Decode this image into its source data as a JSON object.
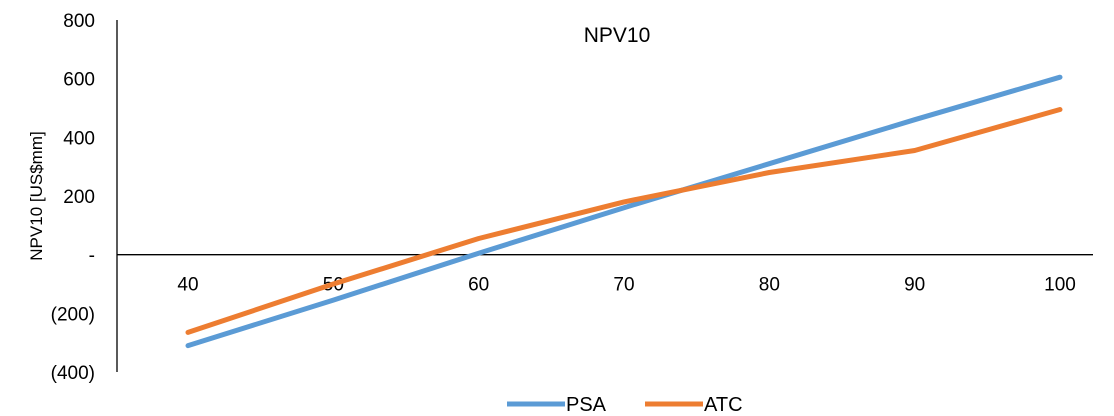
{
  "chart_data": {
    "type": "line",
    "title": "NPV10",
    "xlabel": "",
    "ylabel": "NPV10 [US$mm]",
    "x": [
      40,
      50,
      60,
      70,
      80,
      90,
      100
    ],
    "x_tick_labels": [
      "40",
      "50",
      "60",
      "70",
      "80",
      "90",
      "100"
    ],
    "ylim": [
      -400,
      800
    ],
    "y_ticks": [
      800,
      600,
      400,
      200,
      0,
      -200,
      -400
    ],
    "y_tick_labels": [
      "800",
      "600",
      "400",
      "200",
      "-",
      "(200)",
      "(400)"
    ],
    "grid": false,
    "legend_position": "bottom",
    "series": [
      {
        "name": "PSA",
        "color": "#5B9BD5",
        "values": [
          -310,
          -155,
          5,
          160,
          310,
          460,
          605
        ]
      },
      {
        "name": "ATC",
        "color": "#ED7D31",
        "values": [
          -265,
          -100,
          55,
          180,
          280,
          355,
          495
        ]
      }
    ]
  }
}
